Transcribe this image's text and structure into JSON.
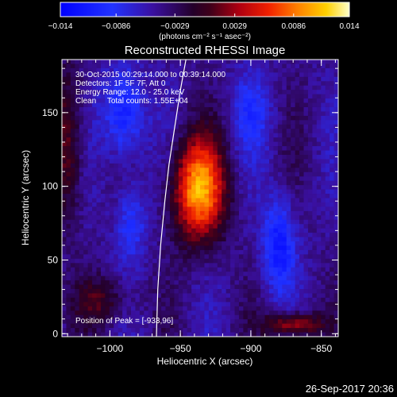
{
  "chart_data": {
    "type": "heatmap",
    "title": "Reconstructed RHESSI Image",
    "xlabel": "Heliocentric X (arcsec)",
    "ylabel": "Heliocentric Y (arcsec)",
    "xlim": [
      -1034,
      -838
    ],
    "ylim": [
      -2,
      186
    ],
    "xticks": [
      -1000,
      -950,
      -900,
      -850
    ],
    "xtick_labels": [
      "−1000",
      "−950",
      "−900",
      "−850"
    ],
    "yticks": [
      0,
      50,
      100,
      150
    ],
    "ytick_labels": [
      "0",
      "50",
      "100",
      "150"
    ],
    "colorbar": {
      "min": -0.014,
      "max": 0.014,
      "ticks": [
        -0.014,
        -0.0086,
        -0.0029,
        0.0029,
        0.0086,
        0.014
      ],
      "tick_labels": [
        "−0.014",
        "−0.0086",
        "−0.0029",
        "0.0029",
        "0.0086",
        "0.014"
      ],
      "unit_label": "(photons cm⁻² s⁻¹ asec⁻²)"
    },
    "annotations": [
      "30-Oct-2015 00:29:14.000 to 00:39:14.000",
      "Detectors: 1F 5F 7F, Att 0",
      "Energy Range: 12.0 - 25.0 keV",
      "Clean     Total counts: 1.55E+04"
    ],
    "peak_label": "Position of Peak = [-933,96]",
    "peak": {
      "x": -933,
      "y": 96,
      "value": 0.014
    },
    "sources": [
      {
        "x": -937,
        "y": 98,
        "sx": 13,
        "sy": 24,
        "amp": 0.0146
      },
      {
        "x": -870,
        "y": 6,
        "sx": 14,
        "sy": 6,
        "amp": 0.0085
      },
      {
        "x": -1030,
        "y": 130,
        "sx": 8,
        "sy": 38,
        "amp": 0.0058
      },
      {
        "x": -1005,
        "y": 22,
        "sx": 14,
        "sy": 12,
        "amp": 0.0045
      }
    ],
    "negative_sources": [
      {
        "x": -990,
        "y": 150,
        "sx": 10,
        "sy": 22,
        "amp": -0.0075
      },
      {
        "x": -880,
        "y": 60,
        "sx": 8,
        "sy": 22,
        "amp": -0.0075
      },
      {
        "x": -985,
        "y": 75,
        "sx": 8,
        "sy": 18,
        "amp": -0.005
      },
      {
        "x": -900,
        "y": 150,
        "sx": 10,
        "sy": 20,
        "amp": -0.004
      }
    ],
    "background": -0.0045,
    "limb": [
      [
        -967,
        -2
      ],
      [
        -966,
        30
      ],
      [
        -964,
        60
      ],
      [
        -961,
        90
      ],
      [
        -958,
        115
      ],
      [
        -954,
        140
      ],
      [
        -950,
        165
      ],
      [
        -946,
        186
      ]
    ],
    "grid": false
  },
  "timestamp": "26-Sep-2017 20:36"
}
